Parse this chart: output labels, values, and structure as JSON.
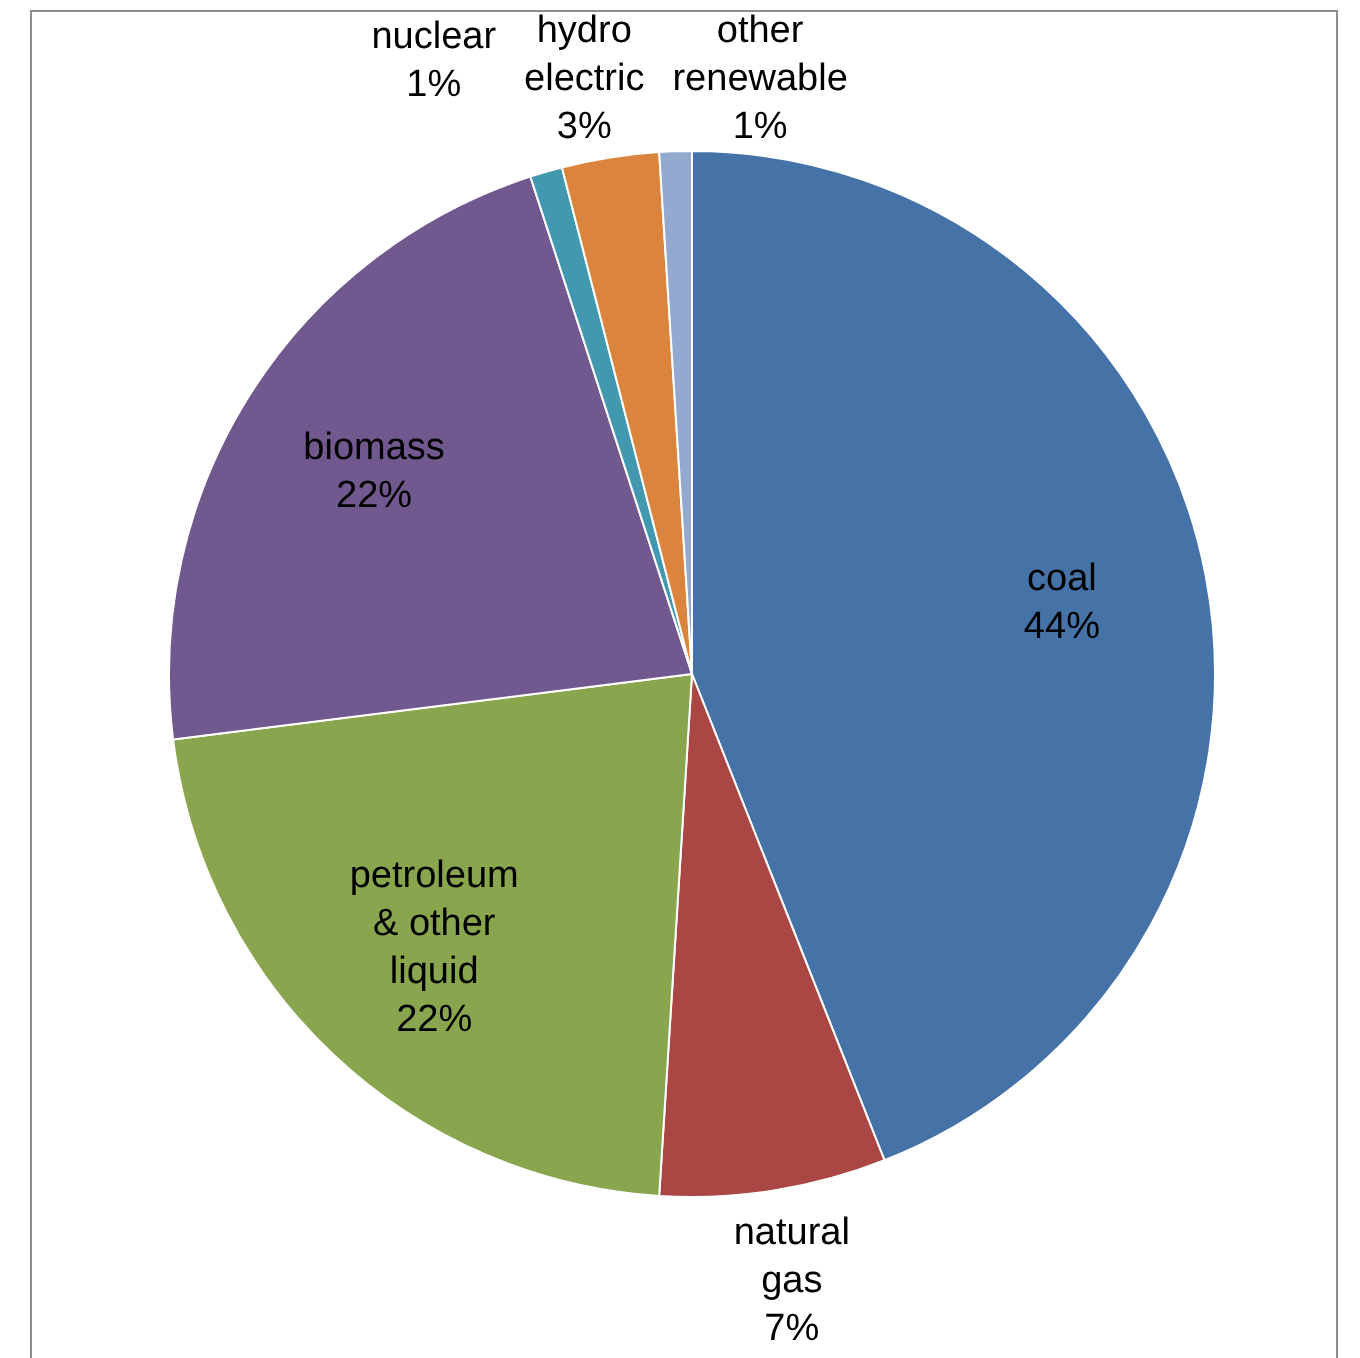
{
  "chart_data": {
    "type": "pie",
    "categories": [
      "coal",
      "natural gas",
      "petroleum & other liquid",
      "biomass",
      "nuclear",
      "hydro electric",
      "other renewable"
    ],
    "values": [
      44,
      7,
      22,
      22,
      1,
      3,
      1
    ],
    "value_labels": [
      "44%",
      "7%",
      "22%",
      "22%",
      "1%",
      "3%",
      "1%"
    ],
    "colors": [
      "#4572a7",
      "#aa4643",
      "#89a54e",
      "#71588f",
      "#4198af",
      "#db843d",
      "#93a9cf"
    ],
    "legend": false
  }
}
